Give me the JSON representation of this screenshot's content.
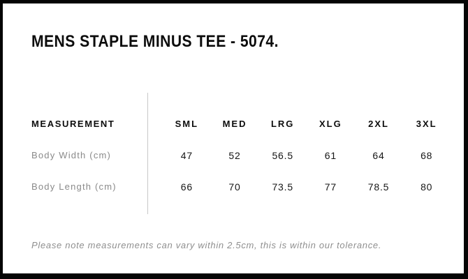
{
  "title": "MENS STAPLE MINUS TEE - 5074.",
  "table": {
    "measurement_header": "MEASUREMENT",
    "size_headers": [
      "SML",
      "MED",
      "LRG",
      "XLG",
      "2XL",
      "3XL"
    ],
    "rows": [
      {
        "label": "Body Width (cm)",
        "values": [
          "47",
          "52",
          "56.5",
          "61",
          "64",
          "68"
        ]
      },
      {
        "label": "Body Length (cm)",
        "values": [
          "66",
          "70",
          "73.5",
          "77",
          "78.5",
          "80"
        ]
      }
    ]
  },
  "note": "Please note measurements can vary within 2.5cm, this is within our tolerance.",
  "colors": {
    "background": "#ffffff",
    "frame": "#050505",
    "heading_text": "#0c0c0c",
    "value_text": "#161616",
    "muted_text": "#8a8a8a",
    "divider": "#c8c8c8"
  },
  "chart_data": {
    "type": "table",
    "title": "MENS STAPLE MINUS TEE - 5074.",
    "columns": [
      "MEASUREMENT",
      "SML",
      "MED",
      "LRG",
      "XLG",
      "2XL",
      "3XL"
    ],
    "rows": [
      [
        "Body Width (cm)",
        47,
        52,
        56.5,
        61,
        64,
        68
      ],
      [
        "Body Length (cm)",
        66,
        70,
        73.5,
        77,
        78.5,
        80
      ]
    ],
    "footnote": "Please note measurements can vary within 2.5cm, this is within our tolerance."
  }
}
